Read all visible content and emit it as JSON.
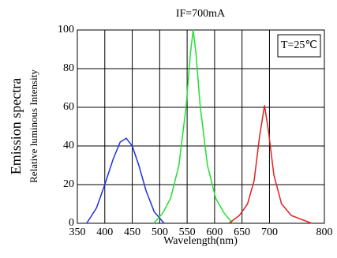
{
  "chart_data": {
    "type": "line",
    "title": "IF=700mA",
    "annotation": "T=25℃",
    "y_outer_label": "Emission spectra",
    "ylabel": "Relative luminous Intensity",
    "xlabel": "Wavelength(nm)",
    "xlim": [
      350,
      800
    ],
    "xticks": [
      350,
      400,
      450,
      500,
      550,
      600,
      650,
      700,
      800
    ],
    "ylim": [
      0,
      100
    ],
    "yticks": [
      0,
      20,
      40,
      60,
      80,
      100
    ],
    "grid": true,
    "series": [
      {
        "color": "#2030e0",
        "x": [
          367,
          385,
          400,
          415,
          428,
          439,
          450,
          462,
          475,
          490,
          508
        ],
        "values": [
          0,
          8,
          20,
          33,
          42,
          44,
          40,
          30,
          17,
          6,
          0
        ]
      },
      {
        "color": "#20e030",
        "x": [
          489,
          505,
          520,
          535,
          548,
          556,
          561,
          566,
          574,
          587,
          602,
          618,
          633
        ],
        "values": [
          0,
          5,
          13,
          30,
          60,
          88,
          100,
          88,
          60,
          30,
          13,
          5,
          0
        ]
      },
      {
        "color": "#e02020",
        "x": [
          626,
          645,
          660,
          672,
          682,
          691,
          698,
          708,
          722,
          740,
          777
        ],
        "values": [
          0,
          4,
          10,
          22,
          45,
          61,
          48,
          25,
          10,
          4,
          0
        ]
      }
    ]
  }
}
